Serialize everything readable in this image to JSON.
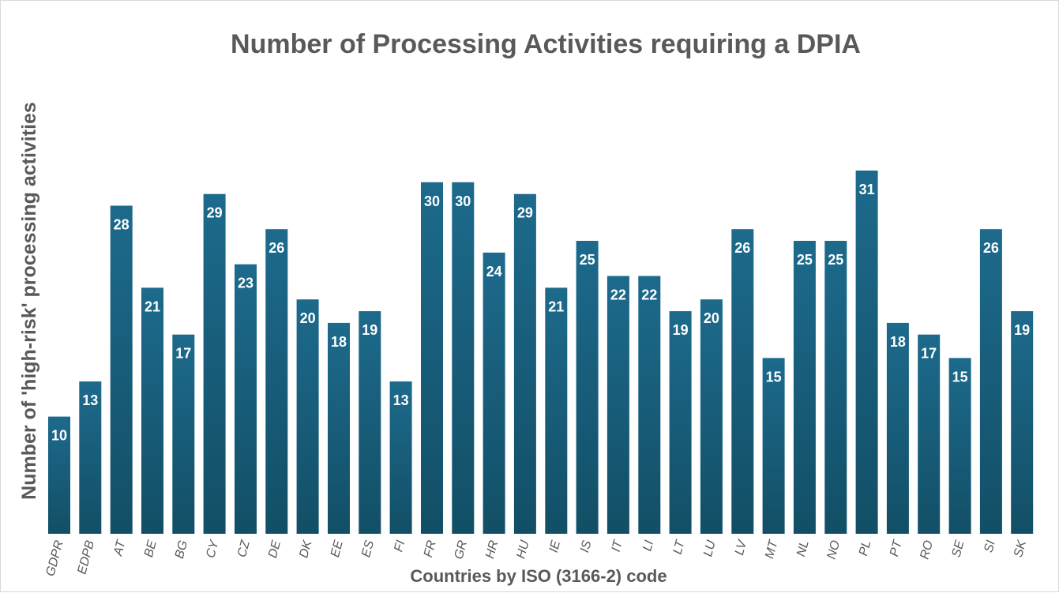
{
  "chart_data": {
    "type": "bar",
    "title": "Number of Processing Activities requiring a DPIA",
    "xlabel": "Countries by ISO (3166-2) code",
    "ylabel": "Number of 'high-risk' processing activities",
    "categories": [
      "GDPR",
      "EDPB",
      "AT",
      "BE",
      "BG",
      "CY",
      "CZ",
      "DE",
      "DK",
      "EE",
      "ES",
      "FI",
      "FR",
      "GR",
      "HR",
      "HU",
      "IE",
      "IS",
      "IT",
      "LI",
      "LT",
      "LU",
      "LV",
      "MT",
      "NL",
      "NO",
      "PL",
      "PT",
      "RO",
      "SE",
      "SI",
      "SK"
    ],
    "values": [
      10,
      13,
      28,
      21,
      17,
      29,
      23,
      26,
      20,
      18,
      19,
      13,
      30,
      30,
      24,
      29,
      21,
      25,
      22,
      22,
      19,
      20,
      26,
      15,
      25,
      25,
      31,
      18,
      17,
      15,
      26,
      19
    ],
    "ylim": [
      0,
      31
    ],
    "grid": false,
    "legend": "none",
    "data_labels": true,
    "colors": {
      "bar_top": "#1d6a8c",
      "bar_bottom": "#124f66",
      "text": "#595959",
      "label": "#ffffff"
    }
  }
}
